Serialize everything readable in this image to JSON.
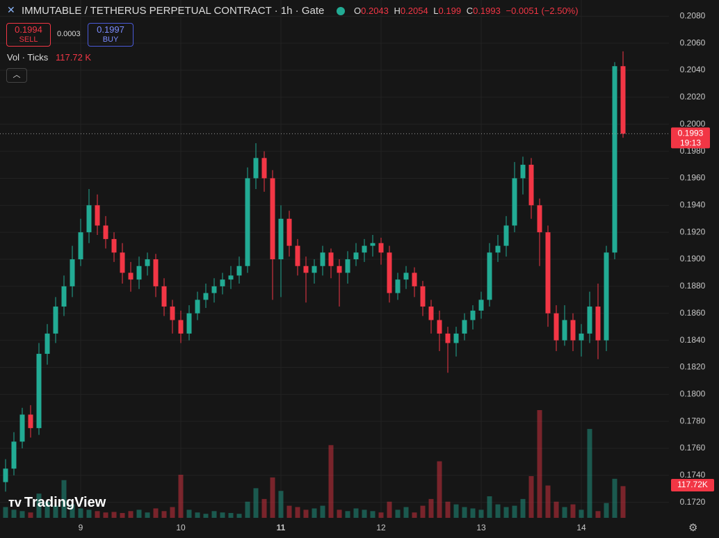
{
  "header": {
    "symbol": "IMMUTABLE / TETHERUS PERPETUAL CONTRACT · 1h · Gate",
    "o_label": "O",
    "h_label": "H",
    "l_label": "L",
    "c_label": "C",
    "change": "−0.0051 (−2.50%)",
    "sell_price": 0.1994,
    "sell": "SELL",
    "spread": 0.0003,
    "buy_price": 0.1997,
    "buy": "BUY",
    "indicator": "Vol · Ticks",
    "volume_label": "117.72 K"
  },
  "chart_data": {
    "type": "candlestick",
    "open": [
      0.1735,
      0.1745,
      0.1765,
      0.1785,
      0.1775,
      0.183,
      0.1845,
      0.1865,
      0.188,
      0.19,
      0.192,
      0.194,
      0.1925,
      0.1915,
      0.1905,
      0.189,
      0.1885,
      0.1895,
      0.19,
      0.188,
      0.1865,
      0.1855,
      0.1845,
      0.186,
      0.187,
      0.1875,
      0.188,
      0.1885,
      0.1888,
      0.1895,
      0.196,
      0.1975,
      0.196,
      0.19,
      0.193,
      0.191,
      0.1895,
      0.189,
      0.1895,
      0.1905,
      0.1895,
      0.189,
      0.19,
      0.1905,
      0.191,
      0.1912,
      0.1905,
      0.1875,
      0.1885,
      0.189,
      0.188,
      0.1865,
      0.1855,
      0.1845,
      0.1838,
      0.1845,
      0.1855,
      0.1862,
      0.187,
      0.1905,
      0.191,
      0.1925,
      0.196,
      0.197,
      0.194,
      0.192,
      0.186,
      0.184,
      0.1855,
      0.184,
      0.1845,
      0.1865,
      0.184,
      0.1905,
      0.2043
    ],
    "high": [
      0.1752,
      0.1772,
      0.179,
      0.1792,
      0.1838,
      0.1852,
      0.1872,
      0.1888,
      0.191,
      0.193,
      0.1952,
      0.1948,
      0.1932,
      0.192,
      0.1912,
      0.1898,
      0.1902,
      0.1905,
      0.1904,
      0.1886,
      0.187,
      0.1862,
      0.1866,
      0.1876,
      0.1882,
      0.1886,
      0.189,
      0.1895,
      0.1902,
      0.1968,
      0.1986,
      0.198,
      0.1966,
      0.194,
      0.1936,
      0.1915,
      0.1902,
      0.19,
      0.191,
      0.1908,
      0.19,
      0.1906,
      0.1912,
      0.1915,
      0.1918,
      0.1916,
      0.191,
      0.189,
      0.1895,
      0.1894,
      0.1884,
      0.187,
      0.1862,
      0.185,
      0.185,
      0.186,
      0.1866,
      0.1876,
      0.1912,
      0.1918,
      0.1932,
      0.1972,
      0.1976,
      0.1975,
      0.1945,
      0.1925,
      0.1866,
      0.1866,
      0.186,
      0.1852,
      0.1876,
      0.1882,
      0.191,
      0.2046,
      0.2054
    ],
    "low": [
      0.1728,
      0.174,
      0.176,
      0.1768,
      0.177,
      0.1822,
      0.1838,
      0.1858,
      0.1872,
      0.1895,
      0.1912,
      0.1918,
      0.1908,
      0.1898,
      0.1882,
      0.1876,
      0.1878,
      0.1888,
      0.1872,
      0.1858,
      0.1845,
      0.1838,
      0.184,
      0.1855,
      0.1864,
      0.1868,
      0.1874,
      0.1878,
      0.1882,
      0.189,
      0.1952,
      0.195,
      0.187,
      0.1872,
      0.1902,
      0.1888,
      0.1868,
      0.1882,
      0.1888,
      0.1886,
      0.1865,
      0.1882,
      0.1895,
      0.1898,
      0.1902,
      0.1896,
      0.1868,
      0.187,
      0.1878,
      0.1872,
      0.1858,
      0.1845,
      0.1832,
      0.1816,
      0.1828,
      0.184,
      0.1848,
      0.1856,
      0.1865,
      0.1898,
      0.1902,
      0.192,
      0.1948,
      0.193,
      0.1895,
      0.185,
      0.1832,
      0.1836,
      0.1832,
      0.1828,
      0.1838,
      0.1826,
      0.1832,
      0.19,
      0.199
    ],
    "close": [
      0.1745,
      0.1765,
      0.1785,
      0.1775,
      0.183,
      0.1845,
      0.1865,
      0.188,
      0.19,
      0.192,
      0.194,
      0.1925,
      0.1915,
      0.1905,
      0.189,
      0.1885,
      0.1895,
      0.19,
      0.188,
      0.1865,
      0.1855,
      0.1845,
      0.186,
      0.187,
      0.1875,
      0.188,
      0.1885,
      0.1888,
      0.1895,
      0.196,
      0.1975,
      0.196,
      0.19,
      0.193,
      0.191,
      0.1895,
      0.189,
      0.1895,
      0.1905,
      0.1895,
      0.189,
      0.19,
      0.1905,
      0.191,
      0.1912,
      0.1905,
      0.1875,
      0.1885,
      0.189,
      0.188,
      0.1865,
      0.1855,
      0.1845,
      0.1838,
      0.1845,
      0.1855,
      0.1862,
      0.187,
      0.1905,
      0.191,
      0.1925,
      0.196,
      0.197,
      0.194,
      0.192,
      0.186,
      0.184,
      0.1855,
      0.184,
      0.1845,
      0.1865,
      0.184,
      0.1905,
      0.2043,
      0.1993
    ],
    "volume": [
      40000,
      30000,
      25000,
      20000,
      90000,
      60000,
      45000,
      140000,
      50000,
      35000,
      30000,
      25000,
      20000,
      22000,
      18000,
      25000,
      30000,
      20000,
      35000,
      25000,
      40000,
      160000,
      30000,
      20000,
      15000,
      25000,
      20000,
      18000,
      15000,
      60000,
      110000,
      70000,
      150000,
      100000,
      45000,
      40000,
      30000,
      35000,
      45000,
      270000,
      30000,
      25000,
      35000,
      30000,
      25000,
      20000,
      60000,
      30000,
      40000,
      20000,
      45000,
      70000,
      210000,
      60000,
      50000,
      40000,
      35000,
      30000,
      80000,
      50000,
      40000,
      45000,
      70000,
      155000,
      400000,
      120000,
      60000,
      40000,
      50000,
      30000,
      330000,
      25000,
      55000,
      145000,
      117720
    ],
    "up_color": "#22ab94",
    "down_color": "#f23645",
    "ylim": [
      0.1707,
      0.2092
    ],
    "yticks": [
      {
        "value": 0.172,
        "label": "0.1720"
      },
      {
        "value": 0.174,
        "label": "0.1740"
      },
      {
        "value": 0.176,
        "label": "0.1760"
      },
      {
        "value": 0.178,
        "label": "0.1780"
      },
      {
        "value": 0.18,
        "label": "0.1800"
      },
      {
        "value": 0.182,
        "label": "0.1820"
      },
      {
        "value": 0.184,
        "label": "0.1840"
      },
      {
        "value": 0.186,
        "label": "0.1860"
      },
      {
        "value": 0.188,
        "label": "0.1880"
      },
      {
        "value": 0.19,
        "label": "0.1900"
      },
      {
        "value": 0.192,
        "label": "0.1920"
      },
      {
        "value": 0.194,
        "label": "0.1940"
      },
      {
        "value": 0.196,
        "label": "0.1960"
      },
      {
        "value": 0.198,
        "label": "0.1980"
      },
      {
        "value": 0.2,
        "label": "0.2000"
      },
      {
        "value": 0.202,
        "label": "0.2020"
      },
      {
        "value": 0.204,
        "label": "0.2040"
      },
      {
        "value": 0.206,
        "label": "0.2060"
      },
      {
        "value": 0.208,
        "label": "0.2080"
      }
    ],
    "day_labels": [
      "9",
      "10",
      "11",
      "12",
      "13",
      "14"
    ],
    "countdown": "19:13",
    "volume_badge": "117.72K",
    "watermark": "TradingView",
    "grid": true
  }
}
